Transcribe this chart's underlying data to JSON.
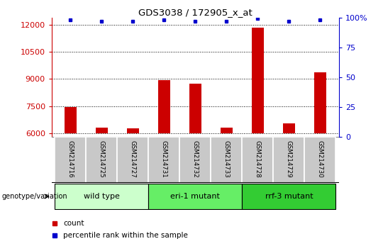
{
  "title": "GDS3038 / 172905_x_at",
  "samples": [
    "GSM214716",
    "GSM214725",
    "GSM214727",
    "GSM214731",
    "GSM214732",
    "GSM214733",
    "GSM214728",
    "GSM214729",
    "GSM214730"
  ],
  "counts": [
    7450,
    6300,
    6280,
    8950,
    8750,
    6300,
    11850,
    6550,
    9350
  ],
  "percentile_values": [
    98,
    97,
    97,
    98,
    97,
    97,
    99,
    97,
    98
  ],
  "ylim_left": [
    5800,
    12400
  ],
  "ylim_right": [
    0,
    100
  ],
  "yticks_left": [
    6000,
    7500,
    9000,
    10500,
    12000
  ],
  "yticks_right": [
    0,
    25,
    50,
    75,
    100
  ],
  "groups": [
    {
      "label": "wild type",
      "indices": [
        0,
        1,
        2
      ],
      "color": "#ccffcc"
    },
    {
      "label": "eri-1 mutant",
      "indices": [
        3,
        4,
        5
      ],
      "color": "#66ee66"
    },
    {
      "label": "rrf-3 mutant",
      "indices": [
        6,
        7,
        8
      ],
      "color": "#33cc33"
    }
  ],
  "bar_color": "#cc0000",
  "dot_color": "#0000cc",
  "bar_width": 0.4,
  "background_color": "#ffffff",
  "left_axis_color": "#cc0000",
  "right_axis_color": "#0000cc",
  "grid_color": "#000000",
  "legend_count_color": "#cc0000",
  "legend_pct_color": "#0000cc",
  "label_box_color": "#c8c8c8"
}
